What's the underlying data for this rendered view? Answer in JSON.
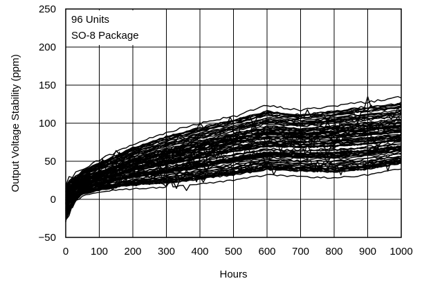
{
  "chart_data": {
    "type": "line",
    "title": "",
    "xlabel": "Hours",
    "ylabel": "Output Voltage Stability (ppm)",
    "xlim": [
      0,
      1000
    ],
    "ylim": [
      -50,
      250
    ],
    "x_ticks": [
      0,
      100,
      200,
      300,
      400,
      500,
      600,
      700,
      800,
      900,
      1000
    ],
    "y_ticks": [
      -50,
      0,
      50,
      100,
      150,
      200,
      250
    ],
    "x_tick_labels": [
      "0",
      "100",
      "200",
      "300",
      "400",
      "500",
      "600",
      "700",
      "800",
      "900",
      "1000"
    ],
    "y_tick_labels": [
      "−50",
      "0",
      "50",
      "100",
      "150",
      "200",
      "250"
    ],
    "grid": true,
    "annotation": [
      "96 Units",
      "SO-8 Package"
    ],
    "line_color": "#000000",
    "series_count": 96,
    "x": [
      0,
      10,
      25,
      50,
      100,
      150,
      200,
      300,
      400,
      500,
      600,
      700,
      800,
      900,
      1000
    ],
    "envelope": {
      "upper": [
        20,
        25,
        30,
        40,
        52,
        62,
        72,
        88,
        100,
        110,
        123,
        117,
        123,
        128,
        134
      ],
      "median": [
        0,
        10,
        14,
        20,
        28,
        35,
        43,
        52,
        62,
        71,
        78,
        77,
        79,
        82,
        86
      ],
      "lower": [
        -30,
        -20,
        -5,
        5,
        10,
        12,
        14,
        16,
        20,
        25,
        32,
        30,
        28,
        32,
        40
      ]
    }
  }
}
